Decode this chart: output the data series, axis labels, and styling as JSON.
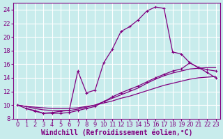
{
  "xlabel": "Windchill (Refroidissement éolien,°C)",
  "bg_color": "#c8ecec",
  "line_color": "#800080",
  "grid_color": "#ffffff",
  "xlim": [
    -0.5,
    23.5
  ],
  "ylim": [
    8,
    25
  ],
  "xticks": [
    0,
    1,
    2,
    3,
    4,
    5,
    6,
    7,
    8,
    9,
    10,
    11,
    12,
    13,
    14,
    15,
    16,
    17,
    18,
    19,
    20,
    21,
    22,
    23
  ],
  "yticks": [
    8,
    10,
    12,
    14,
    16,
    18,
    20,
    22,
    24
  ],
  "line1_x": [
    0,
    1,
    2,
    3,
    4,
    5,
    6,
    7,
    8,
    9,
    10,
    11,
    12,
    13,
    14,
    15,
    16,
    17,
    18,
    19,
    20,
    21,
    22,
    23
  ],
  "line1_y": [
    10.0,
    9.5,
    9.2,
    8.8,
    8.9,
    9.1,
    9.2,
    15.0,
    11.8,
    12.2,
    16.2,
    18.2,
    20.8,
    21.5,
    22.5,
    23.8,
    24.4,
    24.2,
    17.8,
    17.5,
    16.2,
    15.5,
    14.8,
    14.0
  ],
  "line2_x": [
    0,
    1,
    2,
    3,
    4,
    5,
    6,
    7,
    8,
    9,
    10,
    11,
    12,
    13,
    14,
    15,
    16,
    17,
    18,
    19,
    20,
    21,
    22,
    23
  ],
  "line2_y": [
    10.0,
    9.8,
    9.7,
    9.6,
    9.5,
    9.5,
    9.5,
    9.6,
    9.8,
    10.0,
    10.3,
    10.6,
    11.0,
    11.3,
    11.7,
    12.1,
    12.5,
    12.9,
    13.2,
    13.5,
    13.8,
    14.0,
    14.1,
    14.2
  ],
  "line3_x": [
    0,
    1,
    2,
    3,
    4,
    5,
    6,
    7,
    8,
    9,
    10,
    11,
    12,
    13,
    14,
    15,
    16,
    17,
    18,
    19,
    20,
    21,
    22,
    23
  ],
  "line3_y": [
    10.0,
    9.8,
    9.5,
    9.3,
    9.2,
    9.2,
    9.2,
    9.4,
    9.7,
    10.0,
    10.5,
    11.0,
    11.5,
    12.0,
    12.5,
    13.2,
    13.8,
    14.3,
    14.7,
    15.0,
    15.3,
    15.4,
    15.5,
    15.5
  ],
  "line4_x": [
    1,
    2,
    3,
    4,
    5,
    6,
    7,
    8,
    9,
    10,
    11,
    12,
    13,
    14,
    15,
    16,
    17,
    18,
    19,
    20,
    21,
    22,
    23
  ],
  "line4_y": [
    9.5,
    9.1,
    8.8,
    8.8,
    8.8,
    8.9,
    9.2,
    9.5,
    9.8,
    10.5,
    11.2,
    11.8,
    12.3,
    12.8,
    13.4,
    14.0,
    14.5,
    15.0,
    15.3,
    16.2,
    15.5,
    15.2,
    15.0
  ],
  "fontsize_label": 7,
  "fontsize_tick": 6
}
